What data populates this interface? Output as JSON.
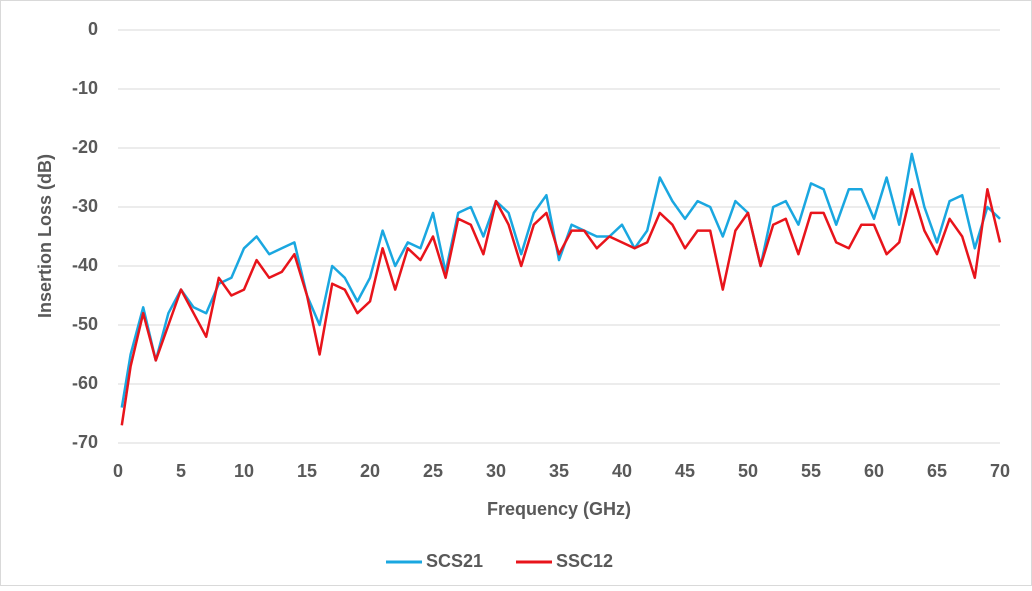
{
  "chart_data": {
    "type": "line",
    "x_label": "Frequency (GHz)",
    "y_label": "Insertion Loss (dB)",
    "x": [
      0.3,
      1,
      2,
      3,
      4,
      5,
      6,
      7,
      8,
      9,
      10,
      11,
      12,
      13,
      14,
      15,
      16,
      17,
      18,
      19,
      20,
      21,
      22,
      23,
      24,
      25,
      26,
      27,
      28,
      29,
      30,
      31,
      32,
      33,
      34,
      35,
      36,
      37,
      38,
      39,
      40,
      41,
      42,
      43,
      44,
      45,
      46,
      47,
      48,
      49,
      50,
      51,
      52,
      53,
      54,
      55,
      56,
      57,
      58,
      59,
      60,
      61,
      62,
      63,
      64,
      65,
      66,
      67,
      68,
      69,
      70
    ],
    "series": [
      {
        "name": "SCS21",
        "color": "#1aa7e0",
        "values": [
          -64,
          -55,
          -47,
          -56,
          -48,
          -44,
          -47,
          -48,
          -43,
          -42,
          -37,
          -35,
          -38,
          -37,
          -36,
          -45,
          -50,
          -40,
          -42,
          -46,
          -42,
          -34,
          -40,
          -36,
          -37,
          -31,
          -41,
          -31,
          -30,
          -35,
          -29,
          -31,
          -38,
          -31,
          -28,
          -39,
          -33,
          -34,
          -35,
          -35,
          -33,
          -37,
          -34,
          -25,
          -29,
          -32,
          -29,
          -30,
          -35,
          -29,
          -31,
          -40,
          -30,
          -29,
          -33,
          -26,
          -27,
          -33,
          -27,
          -27,
          -32,
          -25,
          -33,
          -21,
          -30,
          -36,
          -29,
          -28,
          -37,
          -30,
          -32
        ]
      },
      {
        "name": "SSC12",
        "color": "#e8141b",
        "values": [
          -67,
          -57,
          -48,
          -56,
          -50,
          -44,
          -48,
          -52,
          -42,
          -45,
          -44,
          -39,
          -42,
          -41,
          -38,
          -45,
          -55,
          -43,
          -44,
          -48,
          -46,
          -37,
          -44,
          -37,
          -39,
          -35,
          -42,
          -32,
          -33,
          -38,
          -29,
          -33,
          -40,
          -33,
          -31,
          -38,
          -34,
          -34,
          -37,
          -35,
          -36,
          -37,
          -36,
          -31,
          -33,
          -37,
          -34,
          -34,
          -44,
          -34,
          -31,
          -40,
          -33,
          -32,
          -38,
          -31,
          -31,
          -36,
          -37,
          -33,
          -33,
          -38,
          -36,
          -27,
          -34,
          -38,
          -32,
          -35,
          -42,
          -27,
          -36
        ]
      }
    ],
    "xlim": [
      0,
      70
    ],
    "xticks": [
      0,
      5,
      10,
      15,
      20,
      25,
      30,
      35,
      40,
      45,
      50,
      55,
      60,
      65,
      70
    ],
    "ylim": [
      -70,
      0
    ],
    "yticks": [
      0,
      -10,
      -20,
      -30,
      -40,
      -50,
      -60,
      -70
    ],
    "grid": true,
    "legend": "bottom"
  }
}
